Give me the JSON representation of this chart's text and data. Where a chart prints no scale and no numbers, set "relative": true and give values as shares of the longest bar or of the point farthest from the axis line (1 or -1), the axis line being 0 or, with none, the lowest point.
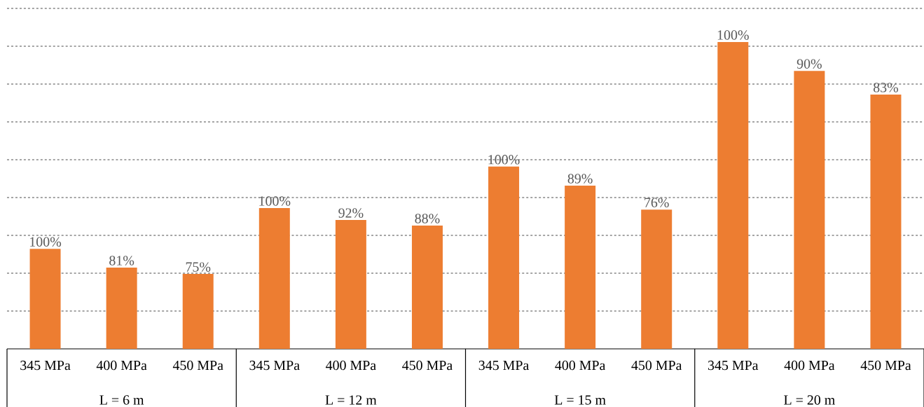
{
  "chart_data": {
    "type": "bar",
    "relative": true,
    "grid": "y",
    "color": "#ed7d31",
    "categories": [
      "345 MPa",
      "400 MPa",
      "450 MPa",
      "345 MPa",
      "400 MPa",
      "450 MPa",
      "345 MPa",
      "400 MPa",
      "450 MPa",
      "345 MPa",
      "400 MPa",
      "450 MPa"
    ],
    "values": [
      0.326,
      0.265,
      0.244,
      0.459,
      0.42,
      0.402,
      0.594,
      0.532,
      0.454,
      1,
      0.906,
      0.829
    ],
    "annotations": [
      "100%",
      "81%",
      "75%",
      "100%",
      "92%",
      "88%",
      "100%",
      "89%",
      "76%",
      "100%",
      "90%",
      "83%",
      "L = 6 m",
      "L = 12 m",
      "L = 15 m",
      "L = 20 m"
    ]
  }
}
